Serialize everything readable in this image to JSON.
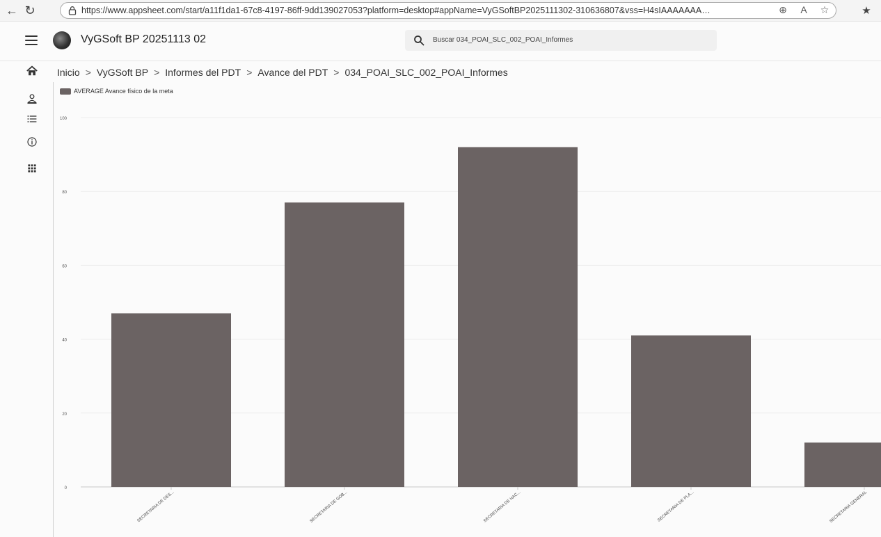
{
  "browser": {
    "url": "https://www.appsheet.com/start/a11f1da1-67c8-4197-86ff-9dd139027053?platform=desktop#appName=VyGSoftBP2025111302-310636807&vss=H4sIAAAAAAAA7VWbXPiNhD-K..."
  },
  "app": {
    "title": "VyGSoft BP 20251113 02",
    "search_placeholder": "Buscar 034_POAI_SLC_002_POAI_Informes"
  },
  "nav": {
    "rail_icons": [
      "home-icon",
      "person-icon",
      "list-icon",
      "info-icon",
      "apps-grid-icon"
    ]
  },
  "breadcrumb": {
    "items": [
      "Inicio",
      "VyGSoft BP",
      "Informes del PDT",
      "Avance del PDT",
      "034_POAI_SLC_002_POAI_Informes"
    ],
    "separator": ">"
  },
  "colors": {
    "bar": "#6b6363",
    "axis": "#c8c8c8",
    "grid": "#ececec"
  },
  "chart_data": {
    "type": "bar",
    "title": "",
    "xlabel": "",
    "ylabel": "",
    "legend_position": "top-left",
    "grid": true,
    "series": [
      {
        "name": "AVERAGE Avance físico de la meta",
        "values": [
          47,
          77,
          92,
          41,
          12
        ]
      }
    ],
    "categories": [
      "SECRETARIA DE DES...",
      "SECRETARIA DE GOB...",
      "SECRETARIA DE HAC...",
      "SECRETARIA DE PLA...",
      "SECRETARIA GENERAL"
    ],
    "yticks": [
      0,
      20,
      40,
      60,
      80,
      100
    ],
    "ylim": [
      0,
      100
    ]
  }
}
